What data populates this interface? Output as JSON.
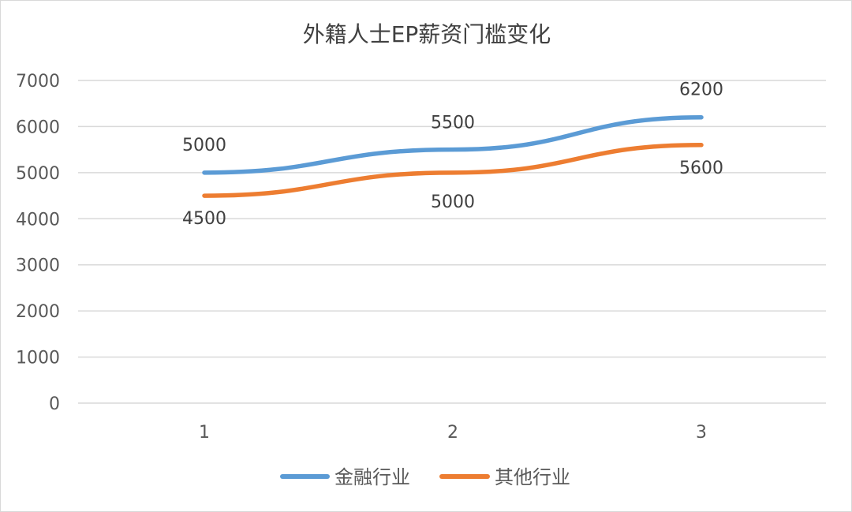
{
  "chart_data": {
    "type": "line",
    "title": "外籍人士EP薪资门槛变化",
    "xlabel": "",
    "ylabel": "",
    "categories": [
      "1",
      "2",
      "3"
    ],
    "ylim": [
      0,
      7000
    ],
    "yticks": [
      0,
      1000,
      2000,
      3000,
      4000,
      5000,
      6000,
      7000
    ],
    "grid": true,
    "legend_position": "bottom",
    "series": [
      {
        "name": "金融行业",
        "color": "#5b9bd5",
        "values": [
          5000,
          5500,
          6200
        ],
        "label_side": "above"
      },
      {
        "name": "其他行业",
        "color": "#ed7d31",
        "values": [
          4500,
          5000,
          5600
        ],
        "label_side": "below"
      }
    ]
  }
}
